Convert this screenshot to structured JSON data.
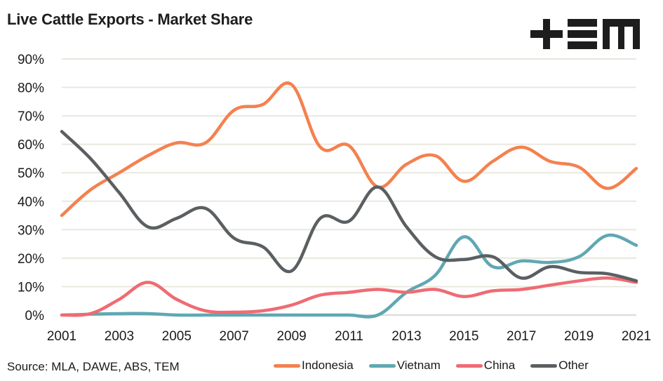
{
  "chart_data": {
    "type": "line",
    "title": "Live Cattle Exports - Market Share",
    "xlabel": "",
    "ylabel": "",
    "x": [
      2001,
      2002,
      2003,
      2004,
      2005,
      2006,
      2007,
      2008,
      2009,
      2010,
      2011,
      2012,
      2013,
      2014,
      2015,
      2016,
      2017,
      2018,
      2019,
      2020,
      2021
    ],
    "x_tick_labels": [
      "2001",
      "2003",
      "2005",
      "2007",
      "2009",
      "2011",
      "2013",
      "2015",
      "2017",
      "2019",
      "2021"
    ],
    "x_ticks": [
      2001,
      2003,
      2005,
      2007,
      2009,
      2011,
      2013,
      2015,
      2017,
      2019,
      2021
    ],
    "y_tick_labels": [
      "0%",
      "10%",
      "20%",
      "30%",
      "40%",
      "50%",
      "60%",
      "70%",
      "80%",
      "90%"
    ],
    "y_ticks": [
      0,
      10,
      20,
      30,
      40,
      50,
      60,
      70,
      80,
      90
    ],
    "ylim": [
      0,
      90
    ],
    "xlim": [
      2001,
      2021
    ],
    "grid": "horizontal",
    "legend_position": "bottom-right",
    "smooth": true,
    "series": [
      {
        "name": "Indonesia",
        "color": "#F4814F",
        "values": [
          35,
          44,
          50,
          56,
          60.5,
          60.5,
          72,
          74,
          81,
          59,
          59.5,
          45,
          53,
          56,
          47,
          54,
          59,
          54,
          52,
          44.5,
          51.5
        ]
      },
      {
        "name": "Vietnam",
        "color": "#5FA8B2",
        "values": [
          0,
          0.3,
          0.5,
          0.5,
          0,
          0,
          0,
          0,
          0,
          0,
          0,
          0,
          8,
          14,
          27.5,
          17,
          19,
          18.5,
          20.5,
          28,
          24.5
        ]
      },
      {
        "name": "China",
        "color": "#EF6B73",
        "values": [
          0,
          0.5,
          5.5,
          11.5,
          5.5,
          1.5,
          1,
          1.5,
          3.5,
          7,
          8,
          9,
          8,
          9,
          6.5,
          8.5,
          9,
          10.5,
          12,
          13,
          11.5
        ]
      },
      {
        "name": "Other",
        "color": "#5B5F61",
        "values": [
          64.5,
          55,
          43,
          31,
          34,
          37.5,
          27,
          24,
          15.5,
          34,
          33,
          45,
          31,
          20.5,
          19.5,
          20.5,
          13,
          17,
          15,
          14.5,
          12
        ]
      }
    ]
  },
  "header": {
    "title": "Live Cattle Exports - Market Share",
    "logo_text": "TEM"
  },
  "footer": {
    "source": "Source: MLA, DAWE, ABS, TEM"
  },
  "legend": [
    {
      "label": "Indonesia",
      "color": "#F4814F"
    },
    {
      "label": "Vietnam",
      "color": "#5FA8B2"
    },
    {
      "label": "China",
      "color": "#EF6B73"
    },
    {
      "label": "Other",
      "color": "#5B5F61"
    }
  ]
}
